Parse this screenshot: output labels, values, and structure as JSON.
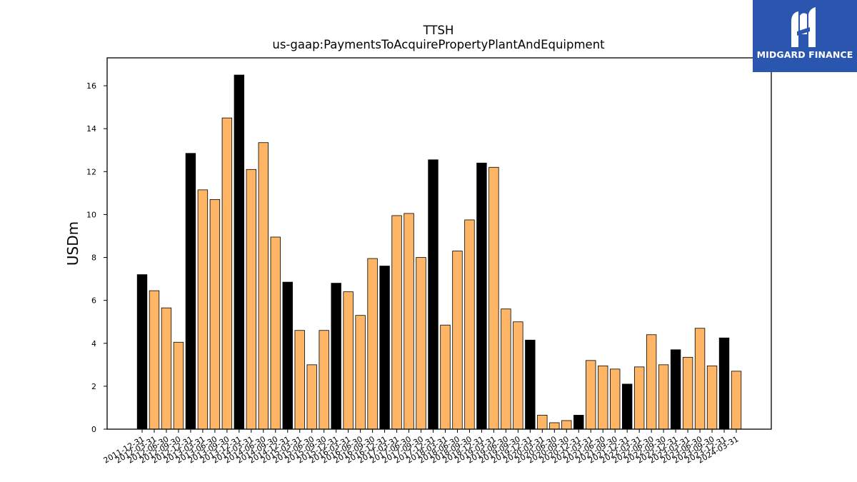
{
  "brand": {
    "name": "MIDGARD FINANCE",
    "logo_icon": "midgard-m-logo-icon",
    "background": "#2a56b0"
  },
  "chart_data": {
    "type": "bar",
    "title": "TTSH",
    "subtitle": "us-gaap:PaymentsToAcquirePropertyPlantAndEquipment",
    "ylabel": "USDm",
    "xlabel": "",
    "ylim": [
      0,
      17.3
    ],
    "yticks": [
      0,
      2,
      4,
      6,
      8,
      10,
      12,
      14,
      16
    ],
    "grid": false,
    "colors": {
      "q4": "#000000",
      "other": "#ffb566",
      "edge": "#000000"
    },
    "categories": [
      "2011-12-31",
      "2012-03-31",
      "2012-06-30",
      "2012-09-30",
      "2012-12-31",
      "2013-03-31",
      "2013-06-30",
      "2013-09-30",
      "2013-12-31",
      "2014-03-31",
      "2014-06-30",
      "2014-09-30",
      "2014-12-31",
      "2015-03-31",
      "2015-06-30",
      "2015-09-30",
      "2015-12-31",
      "2016-03-31",
      "2016-06-30",
      "2016-09-30",
      "2016-12-31",
      "2017-03-31",
      "2017-06-30",
      "2017-09-30",
      "2017-12-31",
      "2018-03-31",
      "2018-06-30",
      "2018-09-30",
      "2018-12-31",
      "2019-03-31",
      "2019-06-30",
      "2019-09-30",
      "2019-12-31",
      "2020-03-31",
      "2020-06-30",
      "2020-09-30",
      "2020-12-31",
      "2021-03-31",
      "2021-06-30",
      "2021-09-30",
      "2021-12-31",
      "2022-03-31",
      "2022-06-30",
      "2022-09-30",
      "2022-12-31",
      "2023-03-31",
      "2023-06-30",
      "2023-09-30",
      "2023-12-31",
      "2024-03-31"
    ],
    "values": [
      7.2,
      6.45,
      5.65,
      4.05,
      12.85,
      11.15,
      10.7,
      14.5,
      16.5,
      12.1,
      13.35,
      8.95,
      6.85,
      4.6,
      3.0,
      4.6,
      6.8,
      6.4,
      5.3,
      7.95,
      7.6,
      9.95,
      10.05,
      8.0,
      12.55,
      4.85,
      8.3,
      9.75,
      12.4,
      12.2,
      5.6,
      5.0,
      4.15,
      0.65,
      0.3,
      0.4,
      0.65,
      3.2,
      2.95,
      2.8,
      2.1,
      2.9,
      4.4,
      3.0,
      3.7,
      3.35,
      4.7,
      2.95,
      4.25,
      2.7
    ]
  }
}
